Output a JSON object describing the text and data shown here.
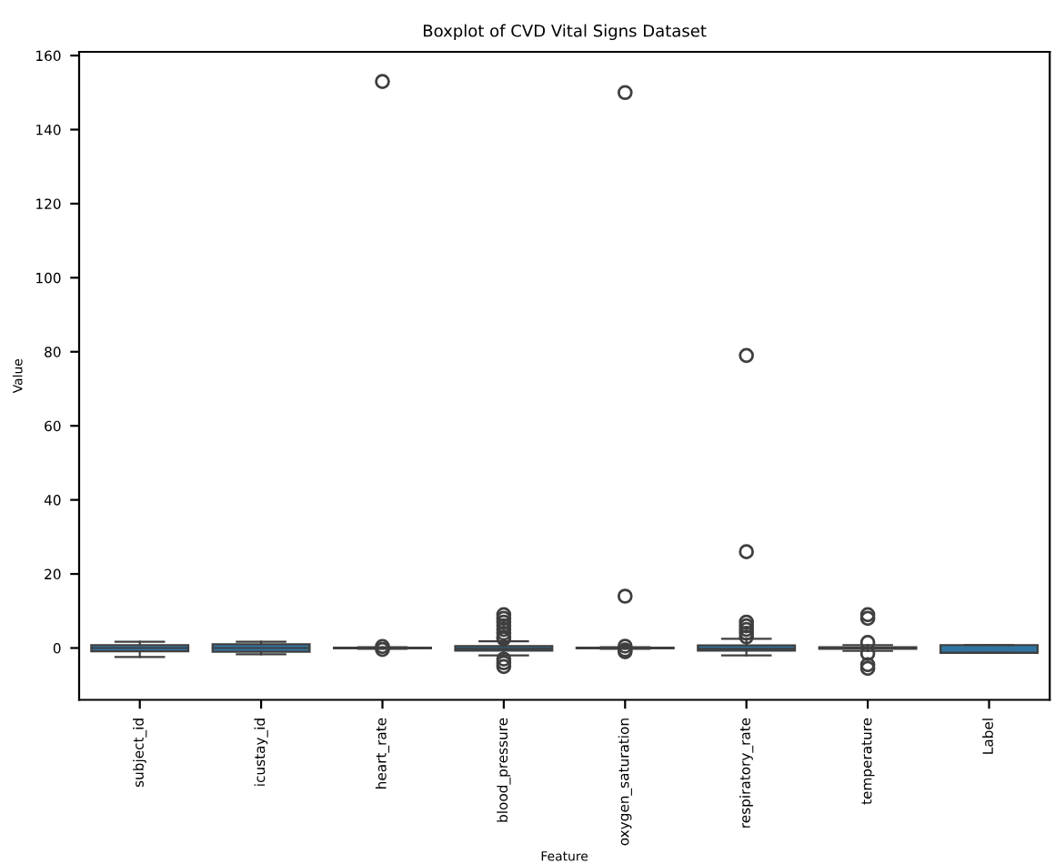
{
  "chart_data": {
    "type": "box",
    "title": "Boxplot of CVD Vital Signs Dataset",
    "xlabel": "Feature",
    "ylabel": "Value",
    "categories": [
      "subject_id",
      "icustay_id",
      "heart_rate",
      "blood_pressure",
      "oxygen_saturation",
      "respiratory_rate",
      "temperature",
      "Label"
    ],
    "ylim": [
      -14,
      161
    ],
    "yticks": [
      0,
      20,
      40,
      60,
      80,
      100,
      120,
      140,
      160
    ],
    "grid": false,
    "series": [
      {
        "color": "#3274a1",
        "boxes": [
          {
            "low": -2.4,
            "q1": -0.9,
            "median": 0,
            "q3": 0.8,
            "high": 1.7
          },
          {
            "low": -1.7,
            "q1": -1,
            "median": 0,
            "q3": 1,
            "high": 1.7
          },
          {
            "low": -0.2,
            "q1": -0.1,
            "median": 0,
            "q3": 0.1,
            "high": 0.2,
            "outliers": [
              -0.4,
              0.4,
              153
            ]
          },
          {
            "low": -2,
            "q1": -0.7,
            "median": -0.2,
            "q3": 0.5,
            "high": 1.8,
            "outliers": [
              -5,
              -4,
              -3,
              2.5,
              3,
              4,
              5,
              6,
              7,
              8,
              9
            ]
          },
          {
            "low": -0.2,
            "q1": -0.1,
            "median": 0,
            "q3": 0.1,
            "high": 0.2,
            "outliers": [
              -1,
              -0.5,
              0.5,
              14,
              150
            ]
          },
          {
            "low": -2,
            "q1": -0.7,
            "median": -0.2,
            "q3": 0.7,
            "high": 2.5,
            "outliers": [
              3,
              4,
              5,
              6,
              7,
              26,
              79
            ]
          },
          {
            "low": -0.8,
            "q1": -0.2,
            "median": 0,
            "q3": 0.2,
            "high": 0.8,
            "outliers": [
              -5.5,
              -4.5,
              -1.5,
              1.5,
              8,
              9
            ]
          },
          {
            "low": -1.3,
            "q1": -1.3,
            "median": -1.3,
            "q3": 0.8,
            "high": 0.8
          }
        ]
      }
    ]
  }
}
